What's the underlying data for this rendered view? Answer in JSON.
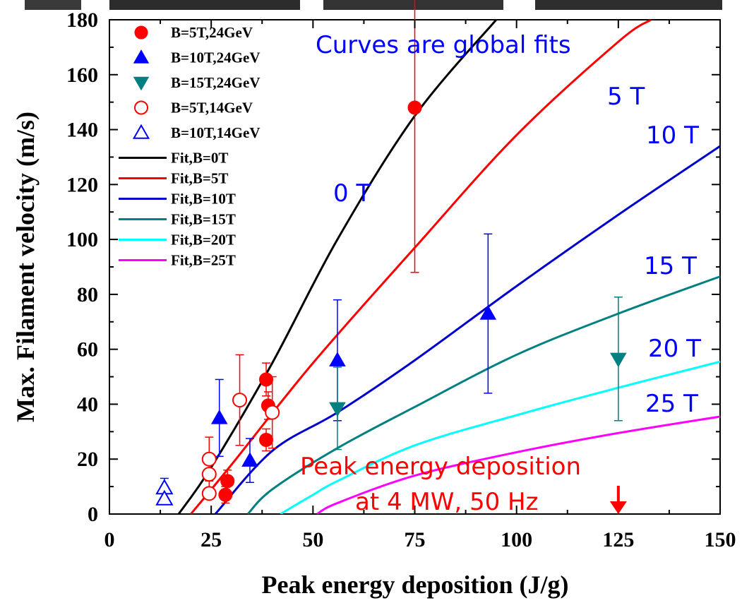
{
  "chart_data": {
    "type": "scatter",
    "xlabel": "Peak energy deposition (J/g)",
    "ylabel": "Max. Filament velocity (m/s)",
    "xlim": [
      0,
      150
    ],
    "ylim": [
      0,
      180
    ],
    "x_ticks": [
      "0",
      "25",
      "50",
      "75",
      "100",
      "125",
      "150"
    ],
    "y_ticks": [
      "0",
      "20",
      "40",
      "60",
      "80",
      "100",
      "120",
      "140",
      "160",
      "180"
    ],
    "grid": false,
    "legend_position": "top-left",
    "series": [
      {
        "name": "B=5T,24GeV",
        "marker": "circle",
        "filled": true,
        "color": "#ff0000",
        "points": [
          {
            "x": 28.5,
            "y": 7,
            "err": 3
          },
          {
            "x": 29,
            "y": 12,
            "err": 4
          },
          {
            "x": 38.5,
            "y": 49,
            "err": 6
          },
          {
            "x": 39,
            "y": 39.5,
            "err": 5
          },
          {
            "x": 38.5,
            "y": 27,
            "err": 4
          },
          {
            "x": 75,
            "y": 148,
            "err": 60
          }
        ]
      },
      {
        "name": "B=10T,24GeV",
        "marker": "triangle-up",
        "filled": true,
        "color": "#0000ff",
        "points": [
          {
            "x": 27,
            "y": 35,
            "err": 14
          },
          {
            "x": 34.5,
            "y": 19.5,
            "err": 8
          },
          {
            "x": 56,
            "y": 56,
            "err": 22
          },
          {
            "x": 93,
            "y": 73,
            "err": 29
          }
        ]
      },
      {
        "name": "B=15T,24GeV",
        "marker": "triangle-down",
        "filled": true,
        "color": "#008080",
        "points": [
          {
            "x": 56,
            "y": 38.5,
            "err": 15
          },
          {
            "x": 125,
            "y": 56.5,
            "err": 22.5
          }
        ]
      },
      {
        "name": "B=5T,14GeV",
        "marker": "circle",
        "filled": false,
        "color": "#ff0000",
        "points": [
          {
            "x": 24.5,
            "y": 7.5,
            "err": 2
          },
          {
            "x": 24.5,
            "y": 14.5,
            "err": 5
          },
          {
            "x": 24.5,
            "y": 20,
            "err": 8
          },
          {
            "x": 32,
            "y": 41.5,
            "err": 16.5
          },
          {
            "x": 40,
            "y": 37,
            "err": 13
          }
        ]
      },
      {
        "name": "B=10T,14GeV",
        "marker": "triangle-up",
        "filled": false,
        "color": "#0000ff",
        "points": [
          {
            "x": 13.5,
            "y": 9.5,
            "err": 3.5
          },
          {
            "x": 13.5,
            "y": 5.5,
            "err": 2
          }
        ]
      }
    ],
    "fit_lines": [
      {
        "name": "Fit,B=0T",
        "color": "#000000",
        "label": "0 T",
        "points": [
          [
            17,
            0
          ],
          [
            25,
            17
          ],
          [
            40,
            55
          ],
          [
            56,
            100
          ],
          [
            75,
            145
          ],
          [
            95,
            180
          ]
        ]
      },
      {
        "name": "Fit,B=5T",
        "color": "#ff0000",
        "label": "5 T",
        "points": [
          [
            20,
            0
          ],
          [
            30,
            18
          ],
          [
            50,
            55
          ],
          [
            75,
            97
          ],
          [
            100,
            138
          ],
          [
            125,
            172
          ],
          [
            133,
            180
          ]
        ]
      },
      {
        "name": "Fit,B=10T",
        "color": "#0000cc",
        "label": "10 T",
        "points": [
          [
            26,
            0
          ],
          [
            40,
            23
          ],
          [
            56,
            37
          ],
          [
            75,
            56
          ],
          [
            100,
            83
          ],
          [
            125,
            109
          ],
          [
            150,
            134
          ]
        ]
      },
      {
        "name": "Fit,B=15T",
        "color": "#008080",
        "label": "15 T",
        "points": [
          [
            34,
            0
          ],
          [
            40,
            9
          ],
          [
            56,
            24
          ],
          [
            75,
            39
          ],
          [
            100,
            58
          ],
          [
            125,
            73
          ],
          [
            150,
            86.5
          ]
        ]
      },
      {
        "name": "Fit,B=20T",
        "color": "#00ffff",
        "label": "20 T",
        "points": [
          [
            42,
            0
          ],
          [
            50,
            7
          ],
          [
            56,
            12
          ],
          [
            75,
            25
          ],
          [
            100,
            36
          ],
          [
            125,
            46
          ],
          [
            150,
            55.5
          ]
        ]
      },
      {
        "name": "Fit,B=25T",
        "color": "#ff00ff",
        "label": "25 T",
        "points": [
          [
            51,
            0
          ],
          [
            56,
            4
          ],
          [
            75,
            14
          ],
          [
            100,
            22.5
          ],
          [
            125,
            29.5
          ],
          [
            150,
            35.5
          ]
        ]
      }
    ],
    "annotations": {
      "global_fits": "Curves are global fits",
      "peak_deposition_line1": "Peak energy deposition",
      "peak_deposition_line2": "at 4 MW, 50 Hz"
    },
    "arrow_x": 125
  },
  "colors": {
    "annotation_blue": "#0000ff",
    "annotation_red": "#ff0000"
  }
}
